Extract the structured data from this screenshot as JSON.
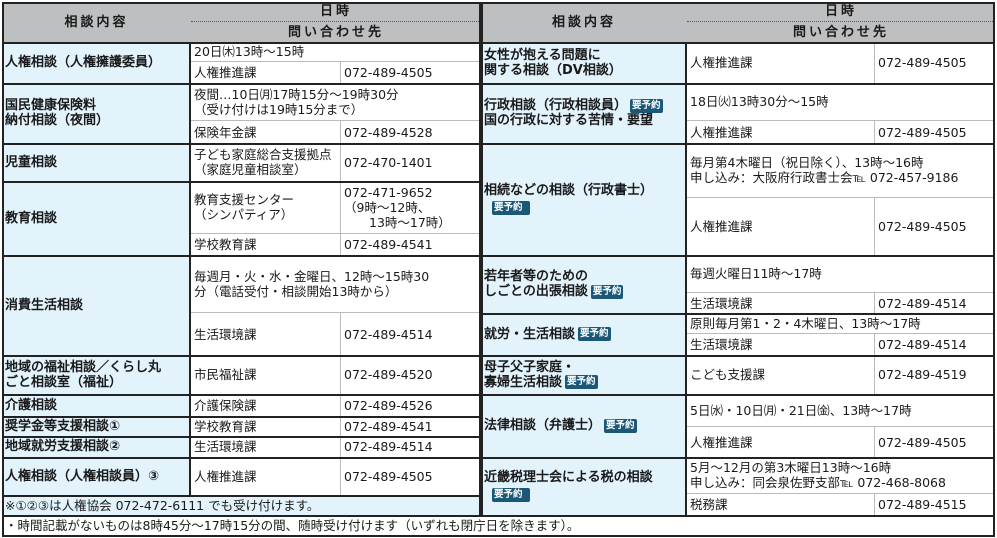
{
  "header": {
    "consult": "相談内容",
    "datetime": "日時",
    "contact": "問い合わせ先"
  },
  "badge_label": "要予約",
  "left": {
    "rows": [
      {
        "label": "人権相談（人権擁護委員）",
        "schedule": "20日㈭13時～15時",
        "contacts": [
          {
            "dept": "人権推進課",
            "phone": "072-489-4505"
          }
        ]
      },
      {
        "label": "国民健康保険料\n納付相談（夜間）",
        "schedule": "夜間…10日㈪17時15分～19時30分\n（受け付けは19時15分まで）",
        "contacts": [
          {
            "dept": "保険年金課",
            "phone": "072-489-4528"
          }
        ]
      },
      {
        "label": "児童相談",
        "contacts": [
          {
            "dept": "子ども家庭総合支援拠点\n（家庭児童相談室）",
            "phone": "072-470-1401"
          }
        ]
      },
      {
        "label": "教育相談",
        "contacts": [
          {
            "dept": "教育支援センター\n（シンパティア）",
            "phone": "072-471-9652\n（9時～12時、\n　　13時～17時）"
          },
          {
            "dept": "学校教育課",
            "phone": "072-489-4541"
          }
        ]
      },
      {
        "label": "消費生活相談",
        "schedule": "毎週月・火・水・金曜日、12時～15時30\n分（電話受付・相談開始13時から）",
        "contacts": [
          {
            "dept": "生活環境課",
            "phone": "072-489-4514"
          }
        ]
      },
      {
        "label": "地域の福祉相談／くらし丸\nごと相談室（福祉）",
        "contacts": [
          {
            "dept": "市民福祉課",
            "phone": "072-489-4520"
          }
        ]
      },
      {
        "label": "介護相談",
        "contacts": [
          {
            "dept": "介護保険課",
            "phone": "072-489-4526"
          }
        ]
      },
      {
        "label": "奨学金等支援相談①",
        "contacts": [
          {
            "dept": "学校教育課",
            "phone": "072-489-4541"
          }
        ]
      },
      {
        "label": "地域就労支援相談②",
        "contacts": [
          {
            "dept": "生活環境課",
            "phone": "072-489-4514"
          }
        ]
      },
      {
        "label": "人権相談（人権相談員）③",
        "contacts": [
          {
            "dept": "人権推進課",
            "phone": "072-489-4505"
          }
        ]
      }
    ],
    "note": "※①②③は人権協会 072-472-6111 でも受け付けます。"
  },
  "right": {
    "rows": [
      {
        "label": "女性が抱える問題に\n関する相談（DV相談）",
        "contacts": [
          {
            "dept": "人権推進課",
            "phone": "072-489-4505"
          }
        ]
      },
      {
        "label": "行政相談（行政相談員）",
        "reservation": true,
        "label_after": "国の行政に対する苦情・要望",
        "schedule": "18日㈫13時30分～15時",
        "contacts": [
          {
            "dept": "人権推進課",
            "phone": "072-489-4505"
          }
        ]
      },
      {
        "label": "相続などの相談（行政書士）",
        "reservation": true,
        "schedule": "毎月第4木曜日（祝日除く）、13時～16時\n申し込み：大阪府行政書士会℡ 072-457-9186",
        "contacts": [
          {
            "dept": "人権推進課",
            "phone": "072-489-4505"
          }
        ]
      },
      {
        "label": "若年者等のための\nしごとの出張相談",
        "reservation": true,
        "schedule": "毎週火曜日11時～17時",
        "contacts": [
          {
            "dept": "生活環境課",
            "phone": "072-489-4514"
          }
        ]
      },
      {
        "label": "就労・生活相談",
        "reservation": true,
        "schedule": "原則毎月第1・2・4木曜日、13時～17時",
        "contacts": [
          {
            "dept": "生活環境課",
            "phone": "072-489-4514"
          }
        ]
      },
      {
        "label": "母子父子家庭・\n寡婦生活相談",
        "reservation": true,
        "contacts": [
          {
            "dept": "こども支援課",
            "phone": "072-489-4519"
          }
        ]
      },
      {
        "label": "法律相談（弁護士）",
        "reservation": true,
        "schedule": " 5日㈬・10日㈪・21日㈮、13時～17時",
        "contacts": [
          {
            "dept": "人権推進課",
            "phone": "072-489-4505"
          }
        ]
      },
      {
        "label": "近畿税理士会による税の相談",
        "reservation": true,
        "schedule": "5月～12月の第3木曜日13時～16時\n申し込み：同会泉佐野支部℡ 072-468-8068",
        "contacts": [
          {
            "dept": "税務課",
            "phone": "072-489-4515"
          }
        ]
      }
    ]
  },
  "footer": "・時間記載がないものは8時45分～17時15分の間、随時受け付けます（いずれも閉庁日を除きます）。",
  "colors": {
    "header_bg": "#bdbfc1",
    "label_bg": "#e2f3fc",
    "badge_bg": "#1b5878",
    "border": "#222222"
  }
}
